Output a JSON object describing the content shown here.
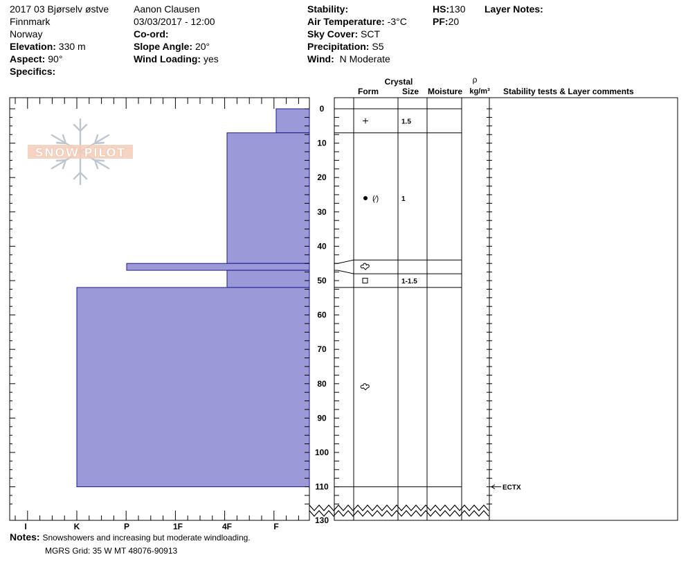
{
  "header": {
    "location_name": "2017 03 Bjørselv østve",
    "region": "Finnmark",
    "country": "Norway",
    "elevation_label": "Elevation:",
    "elevation_value": "330 m",
    "aspect_label": "Aspect:",
    "aspect_value": "90°",
    "specifics_label": "Specifics:",
    "observer": "Aanon Clausen",
    "datetime": "03/03/2017 - 12:00",
    "coord_label": "Co-ord:",
    "slope_label": "Slope Angle:",
    "slope_value": "20°",
    "wind_loading_label": "Wind Loading:",
    "wind_loading_value": "yes",
    "stability_label": "Stability:",
    "air_temp_label": "Air Temperature:",
    "air_temp_value": "-3°C",
    "sky_label": "Sky Cover:",
    "sky_value": "SCT",
    "precip_label": "Precipitation:",
    "precip_value": "S5",
    "wind_label": "Wind:",
    "wind_value": "N Moderate",
    "hs_label": "HS:",
    "hs_value": "130",
    "pf_label": "PF:",
    "pf_value": "20",
    "layer_notes_label": "Layer Notes:"
  },
  "logo_text": "SNOW PILOT",
  "table_headers": {
    "crystal": "Crystal",
    "form": "Form",
    "size": "Size",
    "moisture": "Moisture",
    "rho": "ρ",
    "density_unit": "kg/m³",
    "stability_comments": "Stability tests & Layer comments"
  },
  "colors": {
    "fill": "#9b99d8",
    "stroke": "#1a1a8c"
  },
  "chart_data": {
    "type": "snow-profile",
    "depth_axis": {
      "min": 0,
      "max": 130,
      "ticks": [
        "0",
        "10",
        "20",
        "30",
        "40",
        "50",
        "60",
        "70",
        "80",
        "90",
        "100",
        "110",
        "130"
      ]
    },
    "hardness_axis": {
      "labels": [
        "I",
        "K",
        "P",
        "1F",
        "4F",
        "F"
      ]
    },
    "hardness_layers": [
      {
        "top": 0,
        "bottom": 7,
        "hardness": "F"
      },
      {
        "top": 7,
        "bottom": 45,
        "hardness": "4F"
      },
      {
        "top": 45,
        "bottom": 47,
        "hardness": "P"
      },
      {
        "top": 47,
        "bottom": 52,
        "hardness": "4F"
      },
      {
        "top": 52,
        "bottom": 110,
        "hardness": "K"
      }
    ],
    "layer_boundaries": [
      0,
      7,
      44,
      48,
      52,
      110
    ],
    "crystals": [
      {
        "depth": 3.5,
        "form": "+",
        "size": "1.5"
      },
      {
        "depth": 26,
        "form": "●(⁄)",
        "size": "1"
      },
      {
        "depth": 46,
        "form": "rounded-facet",
        "size": ""
      },
      {
        "depth": 50,
        "form": "□",
        "size": "1-1.5"
      },
      {
        "depth": 81,
        "form": "rounded-facet",
        "size": ""
      }
    ],
    "stability_tests": [
      {
        "depth": 110,
        "label": "ECTX"
      }
    ]
  },
  "notes": {
    "label": "Notes:",
    "text": "Snowshowers and increasing but moderate windloading.",
    "mgrs": "MGRS Grid: 35 W MT 48076-90913"
  }
}
